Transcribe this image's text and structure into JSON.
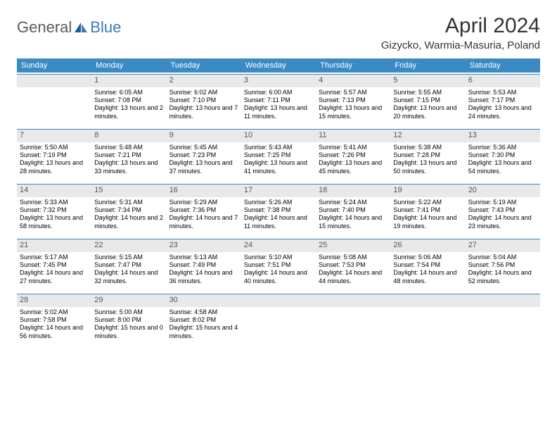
{
  "header": {
    "logo_general": "General",
    "logo_blue": "Blue",
    "month_title": "April 2024",
    "location": "Gizycko, Warmia-Masuria, Poland"
  },
  "colors": {
    "header_bar": "#3b8ac4",
    "daynum_bg": "#e9e9e9",
    "daynum_border": "#3b8ac4",
    "text": "#000000",
    "logo_gray": "#5a5a5a",
    "logo_blue": "#3a7ab8"
  },
  "dow": [
    "Sunday",
    "Monday",
    "Tuesday",
    "Wednesday",
    "Thursday",
    "Friday",
    "Saturday"
  ],
  "weeks": [
    [
      {
        "n": "",
        "sr": "",
        "ss": "",
        "dl": ""
      },
      {
        "n": "1",
        "sr": "Sunrise: 6:05 AM",
        "ss": "Sunset: 7:08 PM",
        "dl": "Daylight: 13 hours and 2 minutes."
      },
      {
        "n": "2",
        "sr": "Sunrise: 6:02 AM",
        "ss": "Sunset: 7:10 PM",
        "dl": "Daylight: 13 hours and 7 minutes."
      },
      {
        "n": "3",
        "sr": "Sunrise: 6:00 AM",
        "ss": "Sunset: 7:11 PM",
        "dl": "Daylight: 13 hours and 11 minutes."
      },
      {
        "n": "4",
        "sr": "Sunrise: 5:57 AM",
        "ss": "Sunset: 7:13 PM",
        "dl": "Daylight: 13 hours and 15 minutes."
      },
      {
        "n": "5",
        "sr": "Sunrise: 5:55 AM",
        "ss": "Sunset: 7:15 PM",
        "dl": "Daylight: 13 hours and 20 minutes."
      },
      {
        "n": "6",
        "sr": "Sunrise: 5:53 AM",
        "ss": "Sunset: 7:17 PM",
        "dl": "Daylight: 13 hours and 24 minutes."
      }
    ],
    [
      {
        "n": "7",
        "sr": "Sunrise: 5:50 AM",
        "ss": "Sunset: 7:19 PM",
        "dl": "Daylight: 13 hours and 28 minutes."
      },
      {
        "n": "8",
        "sr": "Sunrise: 5:48 AM",
        "ss": "Sunset: 7:21 PM",
        "dl": "Daylight: 13 hours and 33 minutes."
      },
      {
        "n": "9",
        "sr": "Sunrise: 5:45 AM",
        "ss": "Sunset: 7:23 PM",
        "dl": "Daylight: 13 hours and 37 minutes."
      },
      {
        "n": "10",
        "sr": "Sunrise: 5:43 AM",
        "ss": "Sunset: 7:25 PM",
        "dl": "Daylight: 13 hours and 41 minutes."
      },
      {
        "n": "11",
        "sr": "Sunrise: 5:41 AM",
        "ss": "Sunset: 7:26 PM",
        "dl": "Daylight: 13 hours and 45 minutes."
      },
      {
        "n": "12",
        "sr": "Sunrise: 5:38 AM",
        "ss": "Sunset: 7:28 PM",
        "dl": "Daylight: 13 hours and 50 minutes."
      },
      {
        "n": "13",
        "sr": "Sunrise: 5:36 AM",
        "ss": "Sunset: 7:30 PM",
        "dl": "Daylight: 13 hours and 54 minutes."
      }
    ],
    [
      {
        "n": "14",
        "sr": "Sunrise: 5:33 AM",
        "ss": "Sunset: 7:32 PM",
        "dl": "Daylight: 13 hours and 58 minutes."
      },
      {
        "n": "15",
        "sr": "Sunrise: 5:31 AM",
        "ss": "Sunset: 7:34 PM",
        "dl": "Daylight: 14 hours and 2 minutes."
      },
      {
        "n": "16",
        "sr": "Sunrise: 5:29 AM",
        "ss": "Sunset: 7:36 PM",
        "dl": "Daylight: 14 hours and 7 minutes."
      },
      {
        "n": "17",
        "sr": "Sunrise: 5:26 AM",
        "ss": "Sunset: 7:38 PM",
        "dl": "Daylight: 14 hours and 11 minutes."
      },
      {
        "n": "18",
        "sr": "Sunrise: 5:24 AM",
        "ss": "Sunset: 7:40 PM",
        "dl": "Daylight: 14 hours and 15 minutes."
      },
      {
        "n": "19",
        "sr": "Sunrise: 5:22 AM",
        "ss": "Sunset: 7:41 PM",
        "dl": "Daylight: 14 hours and 19 minutes."
      },
      {
        "n": "20",
        "sr": "Sunrise: 5:19 AM",
        "ss": "Sunset: 7:43 PM",
        "dl": "Daylight: 14 hours and 23 minutes."
      }
    ],
    [
      {
        "n": "21",
        "sr": "Sunrise: 5:17 AM",
        "ss": "Sunset: 7:45 PM",
        "dl": "Daylight: 14 hours and 27 minutes."
      },
      {
        "n": "22",
        "sr": "Sunrise: 5:15 AM",
        "ss": "Sunset: 7:47 PM",
        "dl": "Daylight: 14 hours and 32 minutes."
      },
      {
        "n": "23",
        "sr": "Sunrise: 5:13 AM",
        "ss": "Sunset: 7:49 PM",
        "dl": "Daylight: 14 hours and 36 minutes."
      },
      {
        "n": "24",
        "sr": "Sunrise: 5:10 AM",
        "ss": "Sunset: 7:51 PM",
        "dl": "Daylight: 14 hours and 40 minutes."
      },
      {
        "n": "25",
        "sr": "Sunrise: 5:08 AM",
        "ss": "Sunset: 7:53 PM",
        "dl": "Daylight: 14 hours and 44 minutes."
      },
      {
        "n": "26",
        "sr": "Sunrise: 5:06 AM",
        "ss": "Sunset: 7:54 PM",
        "dl": "Daylight: 14 hours and 48 minutes."
      },
      {
        "n": "27",
        "sr": "Sunrise: 5:04 AM",
        "ss": "Sunset: 7:56 PM",
        "dl": "Daylight: 14 hours and 52 minutes."
      }
    ],
    [
      {
        "n": "28",
        "sr": "Sunrise: 5:02 AM",
        "ss": "Sunset: 7:58 PM",
        "dl": "Daylight: 14 hours and 56 minutes."
      },
      {
        "n": "29",
        "sr": "Sunrise: 5:00 AM",
        "ss": "Sunset: 8:00 PM",
        "dl": "Daylight: 15 hours and 0 minutes."
      },
      {
        "n": "30",
        "sr": "Sunrise: 4:58 AM",
        "ss": "Sunset: 8:02 PM",
        "dl": "Daylight: 15 hours and 4 minutes."
      },
      {
        "n": "",
        "sr": "",
        "ss": "",
        "dl": ""
      },
      {
        "n": "",
        "sr": "",
        "ss": "",
        "dl": ""
      },
      {
        "n": "",
        "sr": "",
        "ss": "",
        "dl": ""
      },
      {
        "n": "",
        "sr": "",
        "ss": "",
        "dl": ""
      }
    ]
  ]
}
